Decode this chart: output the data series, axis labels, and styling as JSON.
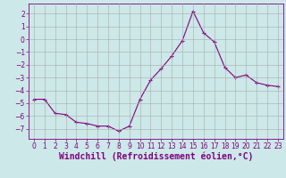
{
  "x": [
    0,
    1,
    2,
    3,
    4,
    5,
    6,
    7,
    8,
    9,
    10,
    11,
    12,
    13,
    14,
    15,
    16,
    17,
    18,
    19,
    20,
    21,
    22,
    23
  ],
  "y": [
    -4.7,
    -4.7,
    -5.8,
    -5.9,
    -6.5,
    -6.6,
    -6.8,
    -6.8,
    -7.2,
    -6.8,
    -4.7,
    -3.2,
    -2.3,
    -1.3,
    -0.1,
    2.2,
    0.5,
    -0.2,
    -2.2,
    -3.0,
    -2.8,
    -3.4,
    -3.6,
    -3.7
  ],
  "line_color": "#800080",
  "marker": "+",
  "marker_size": 3,
  "background_color": "#cce8e8",
  "grid_color": "#aaaaaa",
  "xlabel": "Windchill (Refroidissement éolien,°C)",
  "xlabel_color": "#800080",
  "xlim": [
    -0.5,
    23.5
  ],
  "ylim": [
    -7.8,
    2.8
  ],
  "yticks": [
    2,
    1,
    0,
    -1,
    -2,
    -3,
    -4,
    -5,
    -6,
    -7
  ],
  "xticks": [
    0,
    1,
    2,
    3,
    4,
    5,
    6,
    7,
    8,
    9,
    10,
    11,
    12,
    13,
    14,
    15,
    16,
    17,
    18,
    19,
    20,
    21,
    22,
    23
  ],
  "tick_color": "#800080",
  "tick_label_fontsize": 5.5,
  "xlabel_fontsize": 7.0
}
